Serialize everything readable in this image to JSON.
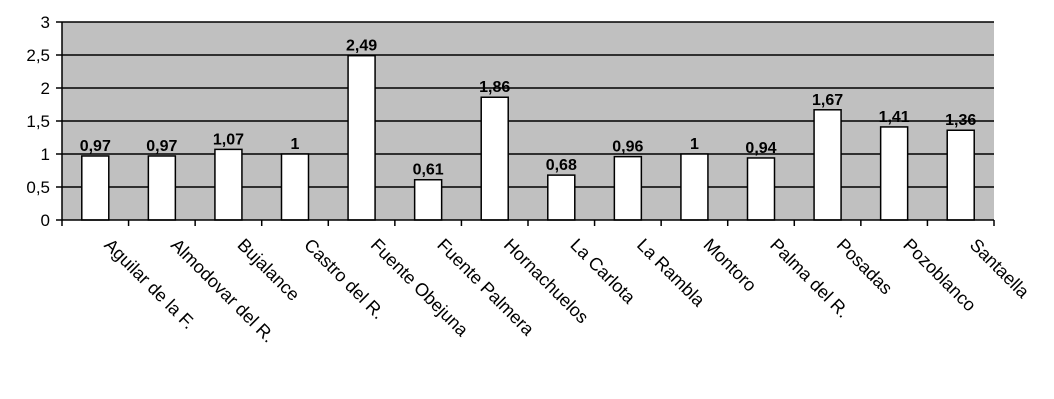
{
  "chart_data": {
    "type": "bar",
    "title": "",
    "xlabel": "",
    "ylabel": "",
    "categories": [
      "Aguilar de la F.",
      "Almodovar del R.",
      "Bujalance",
      "Castro del R.",
      "Fuente Obejuna",
      "Fuente Palmera",
      "Hornachuelos",
      "La Carlota",
      "La Rambla",
      "Montoro",
      "Palma del R.",
      "Posadas",
      "Pozoblanco",
      "Santaella"
    ],
    "values": [
      0.97,
      0.97,
      1.07,
      1,
      2.49,
      0.61,
      1.86,
      0.68,
      0.96,
      1,
      0.94,
      1.67,
      1.41,
      1.36
    ],
    "value_labels": [
      "0,97",
      "0,97",
      "1,07",
      "1",
      "2,49",
      "0,61",
      "1,86",
      "0,68",
      "0,96",
      "1",
      "0,94",
      "1,67",
      "1,41",
      "1,36"
    ],
    "ylim": [
      0,
      3
    ],
    "yticks": [
      0,
      0.5,
      1,
      1.5,
      2,
      2.5,
      3
    ],
    "ytick_labels": [
      "0",
      "0,5",
      "1",
      "1,5",
      "2",
      "2,5",
      "3"
    ],
    "grid": true,
    "legend": "none",
    "colors": {
      "plot_background": "#c0c0c0",
      "bar_fill": "#ffffff",
      "bar_stroke": "#000000",
      "grid": "#000000"
    }
  }
}
